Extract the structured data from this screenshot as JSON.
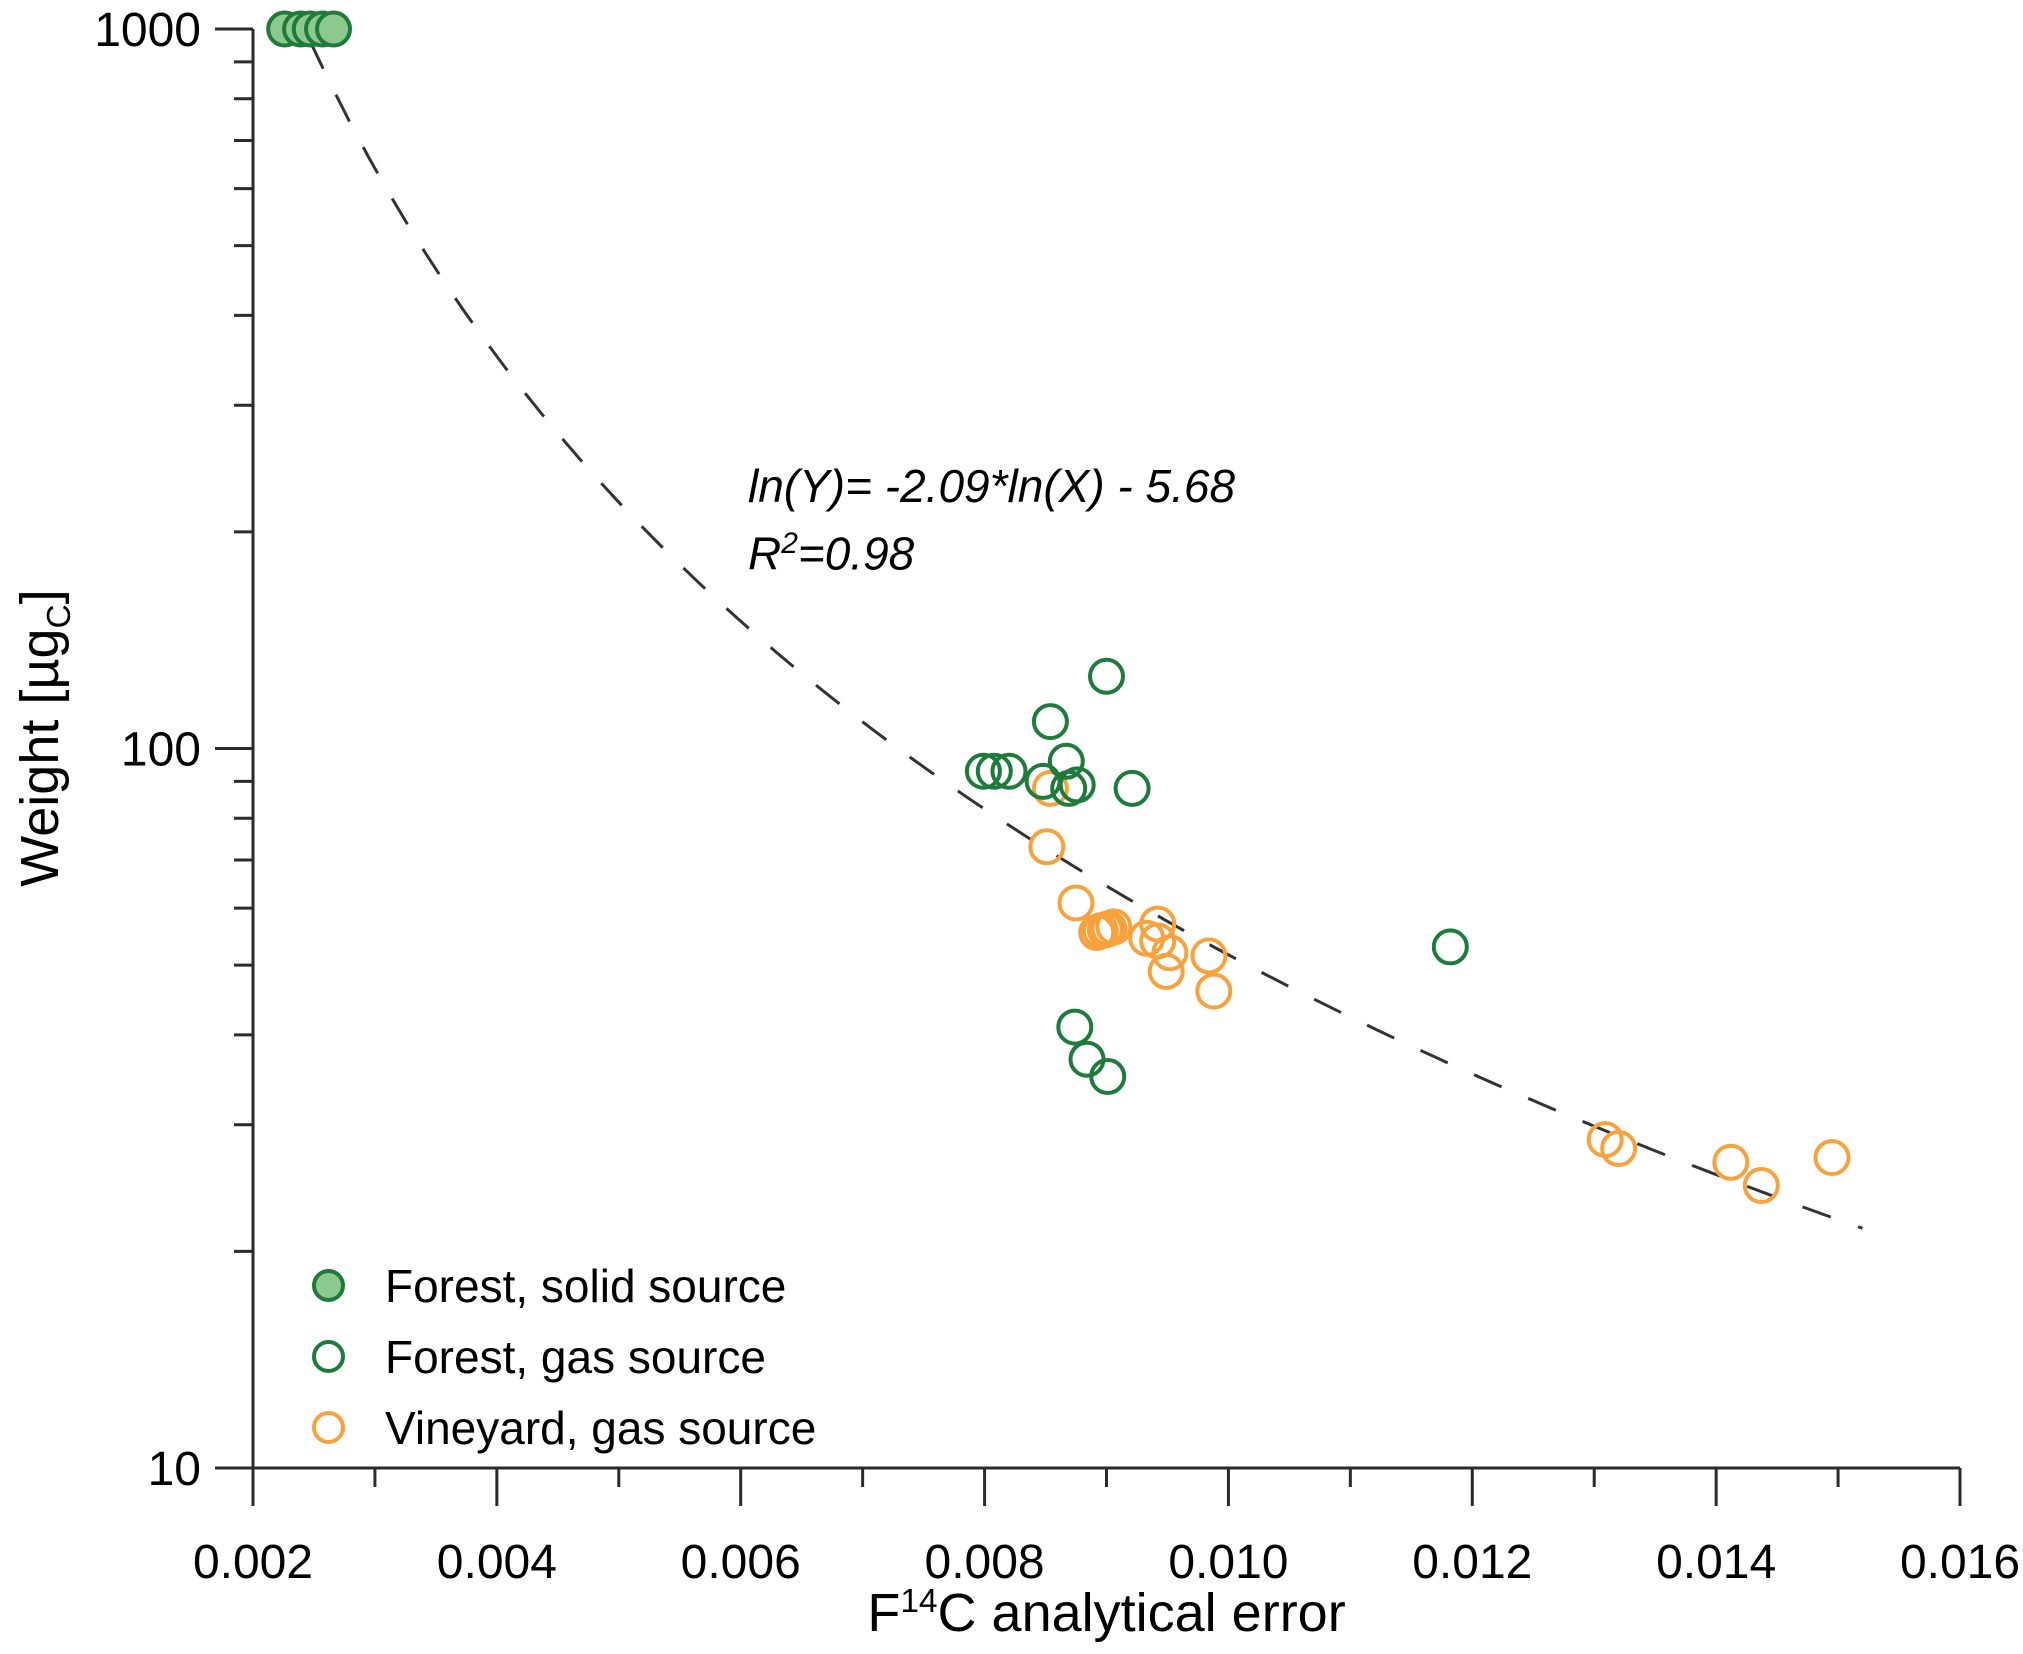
{
  "figure": {
    "annotation": {
      "equation": "ln(Y)= -2.09*ln(X) - 5.68",
      "r_base": "R",
      "r_sup": "2",
      "r_rest": "=0.98"
    },
    "x_title": {
      "prefix": "F",
      "sup": "14",
      "rest": "C analytical error"
    },
    "y_title": {
      "prefix": "Weight [µg",
      "sub": "C",
      "rest": "]"
    }
  },
  "legend": {
    "position": "inside-bottom-left",
    "items": [
      {
        "label": "Forest, solid source",
        "marker": "filled-circle",
        "color": "#1e7b3c"
      },
      {
        "label": "Forest, gas source",
        "marker": "open-circle",
        "color": "#1e7b3c"
      },
      {
        "label": "Vineyard, gas source",
        "marker": "open-circle",
        "color": "#f7a23c"
      }
    ]
  },
  "colors": {
    "forest_fill": "#8dc98e",
    "forest_stroke": "#1e7b3c",
    "vineyard_stroke": "#f7a23c",
    "trendline": "#333333",
    "axis": "#2b2b2b",
    "text": "#000000"
  },
  "chart_data": {
    "type": "scatter",
    "title": "",
    "xlabel": "F¹⁴C analytical error",
    "ylabel": "Weight [µg_C]",
    "x_scale": "linear",
    "y_scale": "log",
    "xlim": [
      0.002,
      0.016
    ],
    "ylim": [
      10,
      1000
    ],
    "grid": false,
    "x_ticks": [
      {
        "label": "0.002",
        "value": 0.002
      },
      {
        "label": "0.004",
        "value": 0.004
      },
      {
        "label": "0.006",
        "value": 0.006
      },
      {
        "label": "0.008",
        "value": 0.008
      },
      {
        "label": "0.010",
        "value": 0.01
      },
      {
        "label": "0.012",
        "value": 0.012
      },
      {
        "label": "0.014",
        "value": 0.014
      },
      {
        "label": "0.016",
        "value": 0.016
      }
    ],
    "x_minor_ticks": [
      0.003,
      0.005,
      0.007,
      0.009,
      0.011,
      0.013,
      0.015
    ],
    "y_ticks": [
      {
        "label": "10",
        "value": 10
      },
      {
        "label": "100",
        "value": 100
      },
      {
        "label": "1000",
        "value": 1000
      }
    ],
    "y_minor_ticks": [
      20,
      30,
      40,
      50,
      60,
      70,
      80,
      90,
      200,
      300,
      400,
      500,
      600,
      700,
      800,
      900
    ],
    "series": [
      {
        "name": "Forest, solid source",
        "marker": "filled-circle",
        "fill": "#8dc98e",
        "stroke": "#1e7b3c",
        "points": [
          [
            0.00226,
            1000
          ],
          [
            0.00239,
            1000
          ],
          [
            0.00247,
            1000
          ],
          [
            0.00257,
            1000
          ],
          [
            0.00266,
            1000
          ]
        ]
      },
      {
        "name": "Forest, gas source",
        "marker": "open-circle",
        "fill": "none",
        "stroke": "#1e7b3c",
        "points": [
          [
            0.00799,
            93
          ],
          [
            0.00808,
            93
          ],
          [
            0.0082,
            93
          ],
          [
            0.00848,
            90
          ],
          [
            0.00854,
            109
          ],
          [
            0.00867,
            96
          ],
          [
            0.00869,
            88
          ],
          [
            0.00876,
            89
          ],
          [
            0.009,
            126
          ],
          [
            0.00921,
            88
          ],
          [
            0.00874,
            41
          ],
          [
            0.00884,
            37
          ],
          [
            0.00901,
            35
          ],
          [
            0.01182,
            53
          ]
        ]
      },
      {
        "name": "Vineyard, gas source",
        "marker": "open-circle",
        "fill": "none",
        "stroke": "#f7a23c",
        "points": [
          [
            0.00851,
            73
          ],
          [
            0.00854,
            88
          ],
          [
            0.00875,
            61
          ],
          [
            0.00892,
            55.5
          ],
          [
            0.00895,
            55.8
          ],
          [
            0.00899,
            56.0
          ],
          [
            0.00902,
            56.2
          ],
          [
            0.00906,
            56.5
          ],
          [
            0.00933,
            54.5
          ],
          [
            0.00942,
            57
          ],
          [
            0.00942,
            54
          ],
          [
            0.00952,
            52
          ],
          [
            0.00949,
            49
          ],
          [
            0.00984,
            51.5
          ],
          [
            0.00988,
            46
          ],
          [
            0.01309,
            28.6
          ],
          [
            0.0132,
            27.8
          ],
          [
            0.01412,
            26.6
          ],
          [
            0.01437,
            24.7
          ],
          [
            0.01495,
            27
          ]
        ]
      }
    ],
    "trendline": {
      "style": "dashed",
      "color": "#333333",
      "model": "ln(Y) = slope*ln(X) + intercept",
      "slope": -2.09,
      "intercept": -5.68,
      "r_squared": 0.98,
      "x_start": 0.00247,
      "x_end": 0.0152
    }
  }
}
